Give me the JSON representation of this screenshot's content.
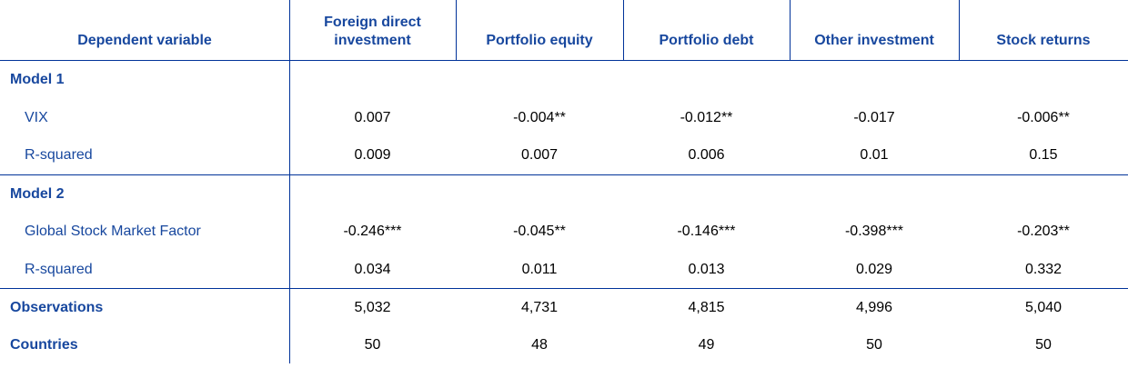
{
  "header": {
    "dependent_variable": "Dependent variable",
    "columns": [
      "Foreign direct investment",
      "Portfolio equity",
      "Portfolio debt",
      "Other investment",
      "Stock returns"
    ]
  },
  "model1": {
    "title": "Model 1",
    "rows": [
      {
        "label": "VIX",
        "values": [
          "0.007",
          "-0.004**",
          "-0.012**",
          "-0.017",
          "-0.006**"
        ]
      },
      {
        "label": "R-squared",
        "values": [
          "0.009",
          "0.007",
          "0.006",
          "0.01",
          "0.15"
        ]
      }
    ]
  },
  "model2": {
    "title": "Model 2",
    "rows": [
      {
        "label": "Global Stock Market Factor",
        "values": [
          "-0.246***",
          "-0.045**",
          "-0.146***",
          "-0.398***",
          "-0.203**"
        ]
      },
      {
        "label": "R-squared",
        "values": [
          "0.034",
          "0.011",
          "0.013",
          "0.029",
          "0.332"
        ]
      }
    ]
  },
  "summary": [
    {
      "label": "Observations",
      "values": [
        "5,032",
        "4,731",
        "4,815",
        "4,996",
        "5,040"
      ]
    },
    {
      "label": "Countries",
      "values": [
        "50",
        "48",
        "49",
        "50",
        "50"
      ]
    }
  ],
  "colors": {
    "label_blue": "#17479e",
    "rule_blue": "#003299",
    "value_text": "#000000"
  }
}
